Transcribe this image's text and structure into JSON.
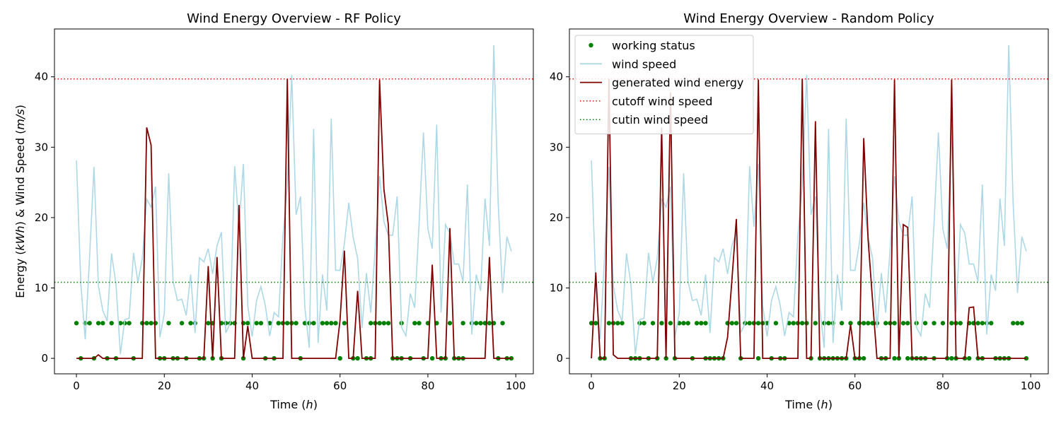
{
  "chart_data": [
    {
      "type": "line",
      "title": "Wind Energy Overview - RF Policy",
      "xlabel": "Time (h)",
      "ylabel": "Energy (kWh) & Wind Speed (m/s)",
      "xlim": [
        -5,
        104
      ],
      "ylim": [
        -2.2,
        46.8
      ],
      "xticks": [
        0,
        20,
        40,
        60,
        80,
        100
      ],
      "yticks": [
        0,
        10,
        20,
        30,
        40
      ],
      "grid": false,
      "legend": null,
      "reference_lines": {
        "cutoff_wind_speed": 39.7,
        "cutin_wind_speed": 10.8
      },
      "series": [
        {
          "name": "wind speed",
          "color": "#add8e6",
          "x": [
            0,
            1,
            2,
            3,
            4,
            5,
            6,
            7,
            8,
            9,
            10,
            11,
            12,
            13,
            14,
            15,
            16,
            17,
            18,
            19,
            20,
            21,
            22,
            23,
            24,
            25,
            26,
            27,
            28,
            29,
            30,
            31,
            32,
            33,
            34,
            35,
            36,
            37,
            38,
            39,
            40,
            41,
            42,
            43,
            44,
            45,
            46,
            47,
            48,
            49,
            50,
            51,
            52,
            53,
            54,
            55,
            56,
            57,
            58,
            59,
            60,
            61,
            62,
            63,
            64,
            65,
            66,
            67,
            68,
            69,
            70,
            71,
            72,
            73,
            74,
            75,
            76,
            77,
            78,
            79,
            80,
            81,
            82,
            83,
            84,
            85,
            86,
            87,
            88,
            89,
            90,
            91,
            92,
            93,
            94,
            95,
            96,
            97,
            98,
            99
          ],
          "values": [
            28.1,
            10.5,
            2.7,
            14.5,
            27.2,
            10.3,
            6.8,
            5.3,
            14.9,
            10.5,
            0.6,
            5.5,
            5.7,
            15.0,
            10.8,
            14.2,
            22.6,
            21.5,
            24.4,
            3.0,
            6.4,
            26.3,
            10.9,
            8.2,
            8.4,
            6.1,
            11.9,
            3.6,
            14.3,
            13.7,
            15.6,
            12.0,
            16.0,
            17.9,
            3.6,
            5.0,
            27.3,
            18.7,
            27.6,
            7.5,
            3.1,
            8.2,
            10.2,
            7.5,
            3.2,
            6.5,
            5.9,
            17.4,
            24.5,
            40.3,
            20.4,
            23.0,
            7.2,
            1.5,
            32.6,
            2.2,
            11.9,
            6.8,
            34.1,
            12.5,
            12.5,
            16.3,
            22.1,
            17.2,
            14.2,
            4.3,
            12.1,
            6.5,
            15.5,
            25.9,
            19.4,
            17.5,
            17.5,
            23.0,
            4.4,
            3.2,
            9.2,
            7.2,
            19.2,
            32.1,
            18.4,
            15.6,
            33.2,
            6.5,
            19.0,
            17.8,
            13.4,
            13.4,
            10.9,
            24.7,
            3.4,
            11.9,
            9.6,
            22.7,
            16.0,
            44.5,
            22.1,
            9.3,
            17.3,
            15.2
          ]
        },
        {
          "name": "generated wind energy",
          "color": "#800000",
          "x": [
            0,
            1,
            2,
            3,
            4,
            5,
            6,
            7,
            8,
            9,
            10,
            11,
            12,
            13,
            14,
            15,
            16,
            17,
            18,
            19,
            20,
            21,
            22,
            23,
            24,
            25,
            26,
            27,
            28,
            29,
            30,
            31,
            32,
            33,
            34,
            35,
            36,
            37,
            38,
            39,
            40,
            41,
            42,
            43,
            44,
            45,
            46,
            47,
            48,
            49,
            50,
            51,
            52,
            53,
            54,
            55,
            56,
            57,
            58,
            59,
            60,
            61,
            62,
            63,
            64,
            65,
            66,
            67,
            68,
            69,
            70,
            71,
            72,
            73,
            74,
            75,
            76,
            77,
            78,
            79,
            80,
            81,
            82,
            83,
            84,
            85,
            86,
            87,
            88,
            89,
            90,
            91,
            92,
            93,
            94,
            95,
            96,
            97,
            98,
            99
          ],
          "values": [
            0,
            0,
            0,
            0,
            0,
            0.5,
            0,
            0,
            0,
            0,
            0,
            0,
            0,
            0,
            0,
            0,
            32.8,
            30.3,
            0,
            0,
            0,
            0,
            0,
            0,
            0,
            0,
            0,
            0,
            0,
            0,
            13.1,
            0,
            14.4,
            0,
            0,
            0,
            0,
            21.8,
            0,
            4.6,
            0,
            0,
            0,
            0,
            0,
            0,
            0,
            0,
            39.7,
            0,
            0,
            0,
            0,
            0,
            0,
            0,
            0,
            0,
            0,
            0,
            5.4,
            15.3,
            0,
            0,
            9.6,
            0,
            0,
            0,
            0,
            39.6,
            24.0,
            19.0,
            0,
            0,
            0,
            0,
            0,
            0,
            0,
            0,
            0,
            13.3,
            0,
            0,
            0,
            18.5,
            0,
            0,
            0,
            0,
            0,
            0,
            0,
            0,
            14.4,
            0,
            0,
            0,
            0,
            0
          ]
        },
        {
          "name": "working status",
          "color": "#008000",
          "kind": "scatter",
          "x_at_5": [
            0,
            2,
            3,
            5,
            6,
            8,
            10,
            11,
            12,
            15,
            16,
            17,
            18,
            21,
            24,
            26,
            27,
            30,
            31,
            33,
            34,
            35,
            36,
            38,
            39,
            41,
            42,
            44,
            46,
            47,
            48,
            49,
            50,
            52,
            53,
            54,
            56,
            57,
            58,
            59,
            61,
            67,
            68,
            69,
            70,
            71,
            74,
            77,
            78,
            80,
            82,
            85,
            88,
            90,
            91,
            92,
            93,
            94,
            95,
            97
          ],
          "x_at_0": [
            1,
            4,
            7,
            9,
            13,
            19,
            20,
            22,
            23,
            25,
            28,
            29,
            31,
            33,
            38,
            43,
            45,
            51,
            60,
            63,
            64,
            66,
            67,
            72,
            73,
            74,
            76,
            79,
            81,
            83,
            84,
            86,
            87,
            88,
            96,
            98,
            99
          ]
        }
      ]
    },
    {
      "type": "line",
      "title": "Wind Energy Overview - Random Policy",
      "xlabel": "Time (h)",
      "ylabel": "",
      "xlim": [
        -5,
        104
      ],
      "ylim": [
        -2.2,
        46.8
      ],
      "xticks": [
        0,
        20,
        40,
        60,
        80,
        100
      ],
      "yticks": [
        0,
        10,
        20,
        30,
        40
      ],
      "grid": false,
      "legend": {
        "placement": "upper-left",
        "entries": [
          {
            "label": "working status",
            "kind": "dot",
            "color": "#008000"
          },
          {
            "label": "wind speed",
            "kind": "line",
            "color": "#add8e6"
          },
          {
            "label": "generated wind energy",
            "kind": "line",
            "color": "#800000"
          },
          {
            "label": "cutoff wind speed",
            "kind": "dotted",
            "color": "#ff0000"
          },
          {
            "label": "cutin wind speed",
            "kind": "dotted",
            "color": "#008000"
          }
        ]
      },
      "reference_lines": {
        "cutoff_wind_speed": 39.7,
        "cutin_wind_speed": 10.8
      },
      "series": [
        {
          "name": "wind speed",
          "color": "#add8e6",
          "x": [
            0,
            1,
            2,
            3,
            4,
            5,
            6,
            7,
            8,
            9,
            10,
            11,
            12,
            13,
            14,
            15,
            16,
            17,
            18,
            19,
            20,
            21,
            22,
            23,
            24,
            25,
            26,
            27,
            28,
            29,
            30,
            31,
            32,
            33,
            34,
            35,
            36,
            37,
            38,
            39,
            40,
            41,
            42,
            43,
            44,
            45,
            46,
            47,
            48,
            49,
            50,
            51,
            52,
            53,
            54,
            55,
            56,
            57,
            58,
            59,
            60,
            61,
            62,
            63,
            64,
            65,
            66,
            67,
            68,
            69,
            70,
            71,
            72,
            73,
            74,
            75,
            76,
            77,
            78,
            79,
            80,
            81,
            82,
            83,
            84,
            85,
            86,
            87,
            88,
            89,
            90,
            91,
            92,
            93,
            94,
            95,
            96,
            97,
            98,
            99
          ],
          "values": [
            28.1,
            10.5,
            2.7,
            14.5,
            27.2,
            10.3,
            6.8,
            5.3,
            14.9,
            10.5,
            0.6,
            5.5,
            5.7,
            15.0,
            10.8,
            14.2,
            22.6,
            21.5,
            24.4,
            3.0,
            6.4,
            26.3,
            10.9,
            8.2,
            8.4,
            6.1,
            11.9,
            3.6,
            14.3,
            13.7,
            15.6,
            12.0,
            16.0,
            17.9,
            3.6,
            5.0,
            27.3,
            18.7,
            27.6,
            7.5,
            3.1,
            8.2,
            10.2,
            7.5,
            3.2,
            6.5,
            5.9,
            17.4,
            24.5,
            40.3,
            20.4,
            23.0,
            7.2,
            1.5,
            32.6,
            2.2,
            11.9,
            6.8,
            34.1,
            12.5,
            12.5,
            16.3,
            22.1,
            17.2,
            14.2,
            4.3,
            12.1,
            6.5,
            15.5,
            25.9,
            19.4,
            17.5,
            17.5,
            23.0,
            4.4,
            3.2,
            9.2,
            7.2,
            19.2,
            32.1,
            18.4,
            15.6,
            33.2,
            6.5,
            19.0,
            17.8,
            13.4,
            13.4,
            10.9,
            24.7,
            3.4,
            11.9,
            9.6,
            22.7,
            16.0,
            44.5,
            22.1,
            9.3,
            17.3,
            15.2
          ]
        },
        {
          "name": "generated wind energy",
          "color": "#800000",
          "x": [
            0,
            1,
            2,
            3,
            4,
            5,
            6,
            7,
            8,
            9,
            10,
            11,
            12,
            13,
            14,
            15,
            16,
            17,
            18,
            19,
            20,
            21,
            22,
            23,
            24,
            25,
            26,
            27,
            28,
            29,
            30,
            31,
            32,
            33,
            34,
            35,
            36,
            37,
            38,
            39,
            40,
            41,
            42,
            43,
            44,
            45,
            46,
            47,
            48,
            49,
            50,
            51,
            52,
            53,
            54,
            55,
            56,
            57,
            58,
            59,
            60,
            61,
            62,
            63,
            64,
            65,
            66,
            67,
            68,
            69,
            70,
            71,
            72,
            73,
            74,
            75,
            76,
            77,
            78,
            79,
            80,
            81,
            82,
            83,
            84,
            85,
            86,
            87,
            88,
            89,
            90,
            91,
            92,
            93,
            94,
            95,
            96,
            97,
            98,
            99
          ],
          "values": [
            0,
            12.2,
            0,
            0,
            39.7,
            0.5,
            0,
            0,
            0,
            0,
            0,
            0,
            0,
            0,
            0,
            0,
            32.8,
            0,
            37.8,
            0,
            0,
            0,
            0,
            0,
            0,
            0,
            0,
            0,
            0,
            0,
            0,
            3.0,
            11.2,
            19.8,
            0,
            0,
            0,
            0,
            39.6,
            0,
            0,
            0,
            0,
            0,
            0,
            0,
            0,
            0,
            39.7,
            0,
            0,
            33.7,
            0,
            0,
            0,
            0,
            0,
            0,
            0,
            4.8,
            0,
            0,
            31.3,
            16.9,
            8.2,
            0,
            0,
            0,
            0,
            39.6,
            0,
            19.0,
            18.6,
            0,
            0,
            0,
            0,
            0,
            0,
            0,
            0,
            0,
            39.6,
            0,
            0,
            0,
            7.2,
            7.3,
            0,
            0,
            0,
            0,
            0,
            0,
            0,
            0,
            0,
            0,
            0,
            0
          ]
        },
        {
          "name": "working status",
          "color": "#008000",
          "kind": "scatter",
          "x_at_5": [
            0,
            1,
            4,
            5,
            6,
            7,
            11,
            12,
            14,
            16,
            18,
            20,
            21,
            22,
            24,
            25,
            26,
            31,
            32,
            33,
            35,
            36,
            37,
            38,
            39,
            40,
            42,
            45,
            46,
            47,
            48,
            49,
            51,
            53,
            54,
            55,
            57,
            59,
            61,
            62,
            63,
            64,
            65,
            67,
            68,
            69,
            71,
            72,
            74,
            76,
            78,
            80,
            82,
            83,
            84,
            86,
            87,
            88,
            89,
            90,
            91,
            96,
            97,
            98
          ],
          "x_at_0": [
            2,
            3,
            9,
            10,
            11,
            13,
            15,
            17,
            19,
            23,
            26,
            27,
            28,
            29,
            30,
            34,
            38,
            41,
            43,
            44,
            50,
            52,
            53,
            54,
            55,
            56,
            57,
            58,
            60,
            61,
            62,
            66,
            67,
            69,
            70,
            72,
            73,
            74,
            75,
            76,
            78,
            81,
            82,
            83,
            85,
            86,
            88,
            89,
            92,
            93,
            94,
            95,
            99
          ]
        }
      ]
    }
  ]
}
